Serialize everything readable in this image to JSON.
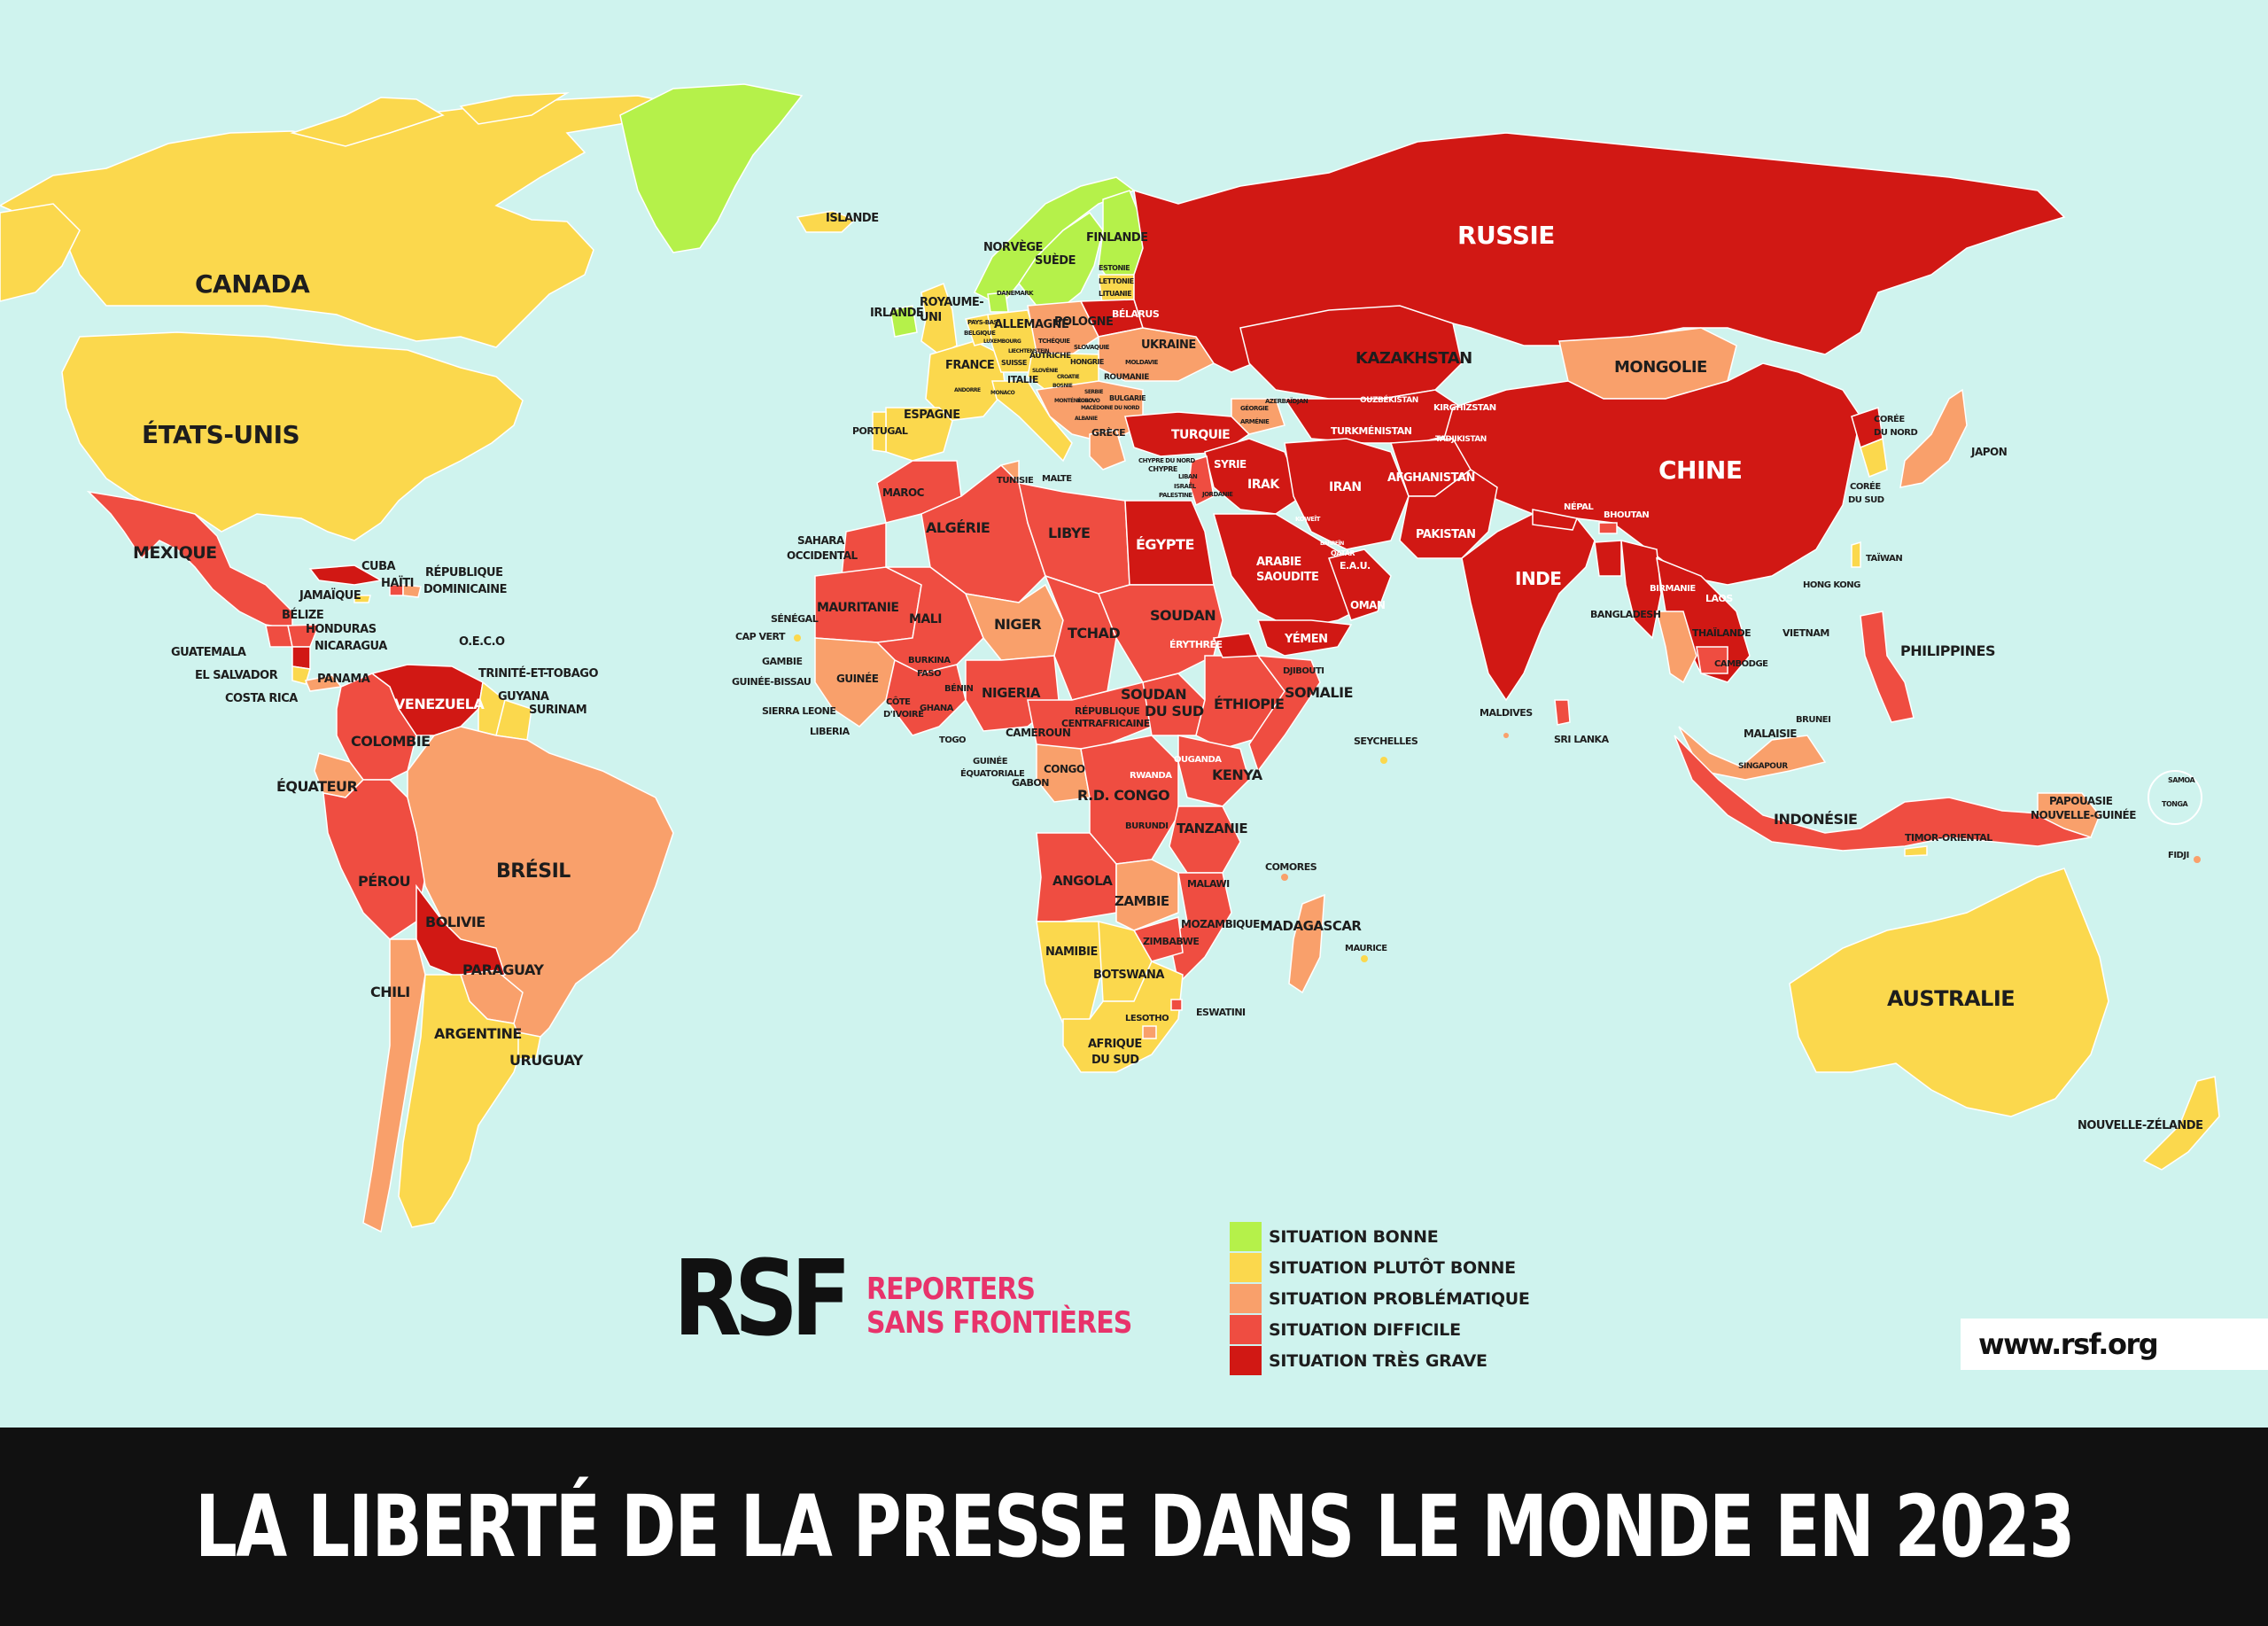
{
  "title": "LA LIBERTÉ DE LA PRESSE DANS LE MONDE EN 2023",
  "url": "www.rsf.org",
  "logo": {
    "mark": "RSF",
    "line1": "REPORTERS",
    "line2": "SANS FRONTIÈRES"
  },
  "colors": {
    "bonne": "#b5f14a",
    "plutot_bonne": "#fbd84d",
    "problematique": "#f9a06b",
    "difficile": "#ef4d41",
    "tres_grave": "#d11814",
    "ocean": "#cff3ee"
  },
  "legend": [
    {
      "label": "SITUATION BONNE",
      "color": "#b5f14a"
    },
    {
      "label": "SITUATION PLUTÔT BONNE",
      "color": "#fbd84d"
    },
    {
      "label": "SITUATION PROBLÉMATIQUE",
      "color": "#f9a06b"
    },
    {
      "label": "SITUATION DIFFICILE",
      "color": "#ef4d41"
    },
    {
      "label": "SITUATION TRÈS GRAVE",
      "color": "#d11814"
    }
  ],
  "labels": {
    "canada": "CANADA",
    "etats_unis": "ÉTATS-UNIS",
    "mexique": "MEXIQUE",
    "cuba": "CUBA",
    "haiti": "HAÏTI",
    "republique_dominicaine_1": "RÉPUBLIQUE",
    "republique_dominicaine_2": "DOMINICAINE",
    "jamaique": "JAMAÏQUE",
    "belize": "BÉLIZE",
    "honduras": "HONDURAS",
    "guatemala": "GUATEMALA",
    "nicaragua": "NICARAGUA",
    "el_salvador": "EL SALVADOR",
    "costa_rica": "COSTA RICA",
    "panama": "PANAMA",
    "oeco": "O.E.C.O",
    "trinite": "TRINITÉ-ET-TOBAGO",
    "guyana": "GUYANA",
    "surinam": "SURINAM",
    "venezuela": "VENEZUELA",
    "colombie": "COLOMBIE",
    "equateur": "ÉQUATEUR",
    "perou": "PÉROU",
    "bresil": "BRÉSIL",
    "bolivie": "BOLIVIE",
    "paraguay": "PARAGUAY",
    "chili": "CHILI",
    "argentine": "ARGENTINE",
    "uruguay": "URUGUAY",
    "islande": "ISLANDE",
    "norvege": "NORVÈGE",
    "suede": "SUÈDE",
    "finlande": "FINLANDE",
    "estonie": "ESTONIE",
    "lettonie": "LETTONIE",
    "lituanie": "LITUANIE",
    "danemark": "DANEMARK",
    "irlande": "IRLANDE",
    "royaume_uni_1": "ROYAUME-",
    "royaume_uni_2": "UNI",
    "pays_bas": "PAYS-BAS",
    "belgique": "BELGIQUE",
    "luxembourg": "LUXEMBOURG",
    "allemagne": "ALLEMAGNE",
    "pologne": "POLOGNE",
    "belarus": "BÉLARUS",
    "ukraine": "UKRAINE",
    "tchequie": "TCHÉQUIE",
    "slovaquie": "SLOVAQUIE",
    "autriche": "AUTRICHE",
    "hongrie": "HONGRIE",
    "moldavie": "MOLDAVIE",
    "suisse": "SUISSE",
    "liechtenstein": "LIECHTENSTEIN",
    "slovenie": "SLOVÉNIE",
    "croatie": "CROATIE",
    "roumanie": "ROUMANIE",
    "bosnie": "BOSNIE",
    "serbie": "SERBIE",
    "kosovo": "KOSOVO",
    "montenegro": "MONTÉNÉGRO",
    "bulgarie": "BULGARIE",
    "macedoine": "MACÉDOINE DU NORD",
    "albanie": "ALBANIE",
    "andorre": "ANDORRE",
    "monaco": "MONACO",
    "france": "FRANCE",
    "italie": "ITALIE",
    "espagne": "ESPAGNE",
    "portugal": "PORTUGAL",
    "grece": "GRÈCE",
    "malte": "MALTE",
    "russie": "RUSSIE",
    "kazakhstan": "KAZAKHSTAN",
    "mongolie": "MONGOLIE",
    "chine": "CHINE",
    "ouzbekistan": "OUZBÉKISTAN",
    "kirghizstan": "KIRGHIZSTAN",
    "turkmenistan": "TURKMÉNISTAN",
    "tadjikistan": "TADJIKISTAN",
    "georgie": "GÉORGIE",
    "armenie": "ARMÉNIE",
    "azerbaidjan": "AZERBAÏDJAN",
    "turquie": "TURQUIE",
    "chypre_nord": "CHYPRE DU NORD",
    "chypre": "CHYPRE",
    "syrie": "SYRIE",
    "liban": "LIBAN",
    "israel": "ISRAËL",
    "palestine": "PALESTINE",
    "jordanie": "JORDANIE",
    "irak": "IRAK",
    "iran": "IRAN",
    "afghanistan": "AFGHANISTAN",
    "pakistan": "PAKISTAN",
    "koweit": "KOWEÏT",
    "bahrein": "BAHREÏN",
    "qatar": "QATAR",
    "eau": "E.A.U.",
    "oman": "OMAN",
    "arabie_1": "ARABIE",
    "arabie_2": "SAOUDITE",
    "yemen": "YÉMEN",
    "inde": "INDE",
    "nepal": "NÉPAL",
    "bhoutan": "BHOUTAN",
    "bangladesh": "BANGLADESH",
    "birmanie": "BIRMANIE",
    "laos": "LAOS",
    "thailande": "THAÏLANDE",
    "cambodge": "CAMBODGE",
    "vietnam": "VIETNAM",
    "coree_nord_1": "CORÉE",
    "coree_nord_2": "DU NORD",
    "coree_sud_1": "CORÉE",
    "coree_sud_2": "DU SUD",
    "japon": "JAPON",
    "taiwan": "TAÏWAN",
    "hong_kong": "HONG KONG",
    "philippines": "PHILIPPINES",
    "malaisie": "MALAISIE",
    "brunei": "BRUNEI",
    "singapour": "SINGAPOUR",
    "indonesie": "INDONÉSIE",
    "timor": "TIMOR-ORIENTAL",
    "papouasie_1": "PAPOUASIE",
    "papouasie_2": "NOUVELLE-GUINÉE",
    "samoa": "SAMOA",
    "tonga": "TONGA",
    "fidji": "FIDJI",
    "australie": "AUSTRALIE",
    "nouvelle_zelande": "NOUVELLE-ZÉLANDE",
    "sri_lanka": "SRI LANKA",
    "maldives": "MALDIVES",
    "seychelles": "SEYCHELLES",
    "comores": "COMORES",
    "maurice": "MAURICE",
    "madagascar": "MADAGASCAR",
    "maroc": "MAROC",
    "tunisie": "TUNISIE",
    "algerie": "ALGÉRIE",
    "libye": "LIBYE",
    "egypte": "ÉGYPTE",
    "sahara_1": "SAHARA",
    "sahara_2": "OCCIDENTAL",
    "mauritanie": "MAURITANIE",
    "mali": "MALI",
    "niger": "NIGER",
    "tchad": "TCHAD",
    "soudan": "SOUDAN",
    "erythree": "ÉRYTHRÉE",
    "djibouti": "DJIBOUTI",
    "somalie": "SOMALIE",
    "ethiopie": "ÉTHIOPIE",
    "soudan_sud_1": "SOUDAN",
    "soudan_sud_2": "DU SUD",
    "senegal": "SÉNÉGAL",
    "cap_vert": "CAP VERT",
    "gambie": "GAMBIE",
    "guinee_bissau": "GUINÉE-BISSAU",
    "guinee": "GUINÉE",
    "sierra_leone": "SIERRA LEONE",
    "liberia": "LIBERIA",
    "cote_ivoire_1": "CÔTE",
    "cote_ivoire_2": "D'IVOIRE",
    "burkina_1": "BURKINA",
    "burkina_2": "FASO",
    "ghana": "GHANA",
    "togo": "TOGO",
    "benin": "BÉNIN",
    "nigeria": "NIGERIA",
    "cameroun": "CAMEROUN",
    "centrafrique_1": "RÉPUBLIQUE",
    "centrafrique_2": "CENTRAFRICAINE",
    "guinee_eq_1": "GUINÉE",
    "guinee_eq_2": "ÉQUATORIALE",
    "gabon": "GABON",
    "congo": "CONGO",
    "rdc": "R.D. CONGO",
    "ouganda": "OUGANDA",
    "kenya": "KENYA",
    "rwanda": "RWANDA",
    "burundi": "BURUNDI",
    "tanzanie": "TANZANIE",
    "angola": "ANGOLA",
    "zambie": "ZAMBIE",
    "malawi": "MALAWI",
    "mozambique": "MOZAMBIQUE",
    "zimbabwe": "ZIMBABWE",
    "namibie": "NAMIBIE",
    "botswana": "BOTSWANA",
    "lesotho": "LESOTHO",
    "eswatini": "ESWATINI",
    "afrique_sud_1": "AFRIQUE",
    "afrique_sud_2": "DU SUD"
  }
}
